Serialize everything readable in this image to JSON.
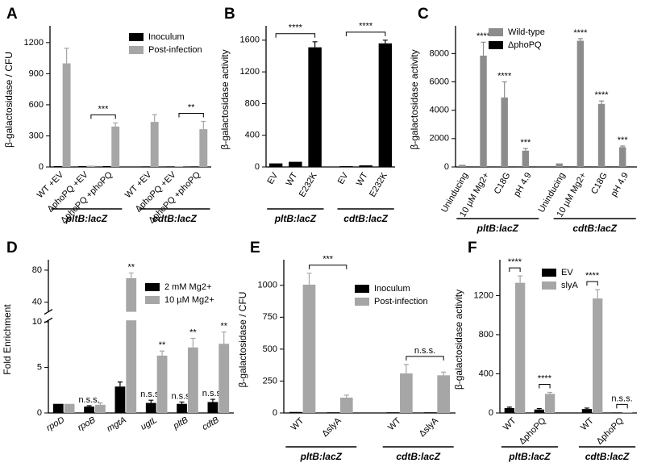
{
  "chart_data": [
    {
      "type": "bar",
      "panel": "A",
      "ylabel": "β-galactosidase / CFU",
      "categories": [
        "WT +EV",
        "ΔphoPQ +EV",
        "ΔphoPQ +phoPQ",
        "WT +EV",
        "ΔphoPQ +EV",
        "ΔphoPQ +phoPQ"
      ],
      "groups": [
        "pltB:lacZ",
        "cdtB:lacZ"
      ],
      "series": [
        {
          "name": "Inoculum",
          "color": "#000000",
          "values": [
            8,
            8,
            8,
            5,
            5,
            5
          ],
          "errors": [
            null,
            null,
            null,
            null,
            null,
            null
          ]
        },
        {
          "name": "Post-infection",
          "color": "#a6a6a6",
          "values": [
            1000,
            12,
            390,
            435,
            5,
            365
          ],
          "errors": [
            145,
            null,
            35,
            70,
            null,
            75
          ]
        }
      ],
      "brackets": [
        {
          "from": 1,
          "to": 2,
          "label": "***"
        },
        {
          "from": 4,
          "to": 5,
          "label": "**"
        }
      ],
      "ylim": [
        0,
        1300
      ],
      "yticks": [
        0,
        300,
        600,
        900,
        1200
      ]
    },
    {
      "type": "bar",
      "panel": "B",
      "ylabel": "β-galactosidase activity",
      "categories": [
        "EV",
        "WT",
        "E232K",
        "EV",
        "WT",
        "E232K"
      ],
      "groups": [
        "pltB:lacZ",
        "cdtB:lacZ"
      ],
      "series": [
        {
          "color": "#000000",
          "values": [
            45,
            65,
            1510,
            10,
            20,
            1560
          ],
          "errors": [
            null,
            null,
            70,
            null,
            null,
            40
          ]
        }
      ],
      "brackets": [
        {
          "from": 0,
          "to": 2,
          "label": "****"
        },
        {
          "from": 3,
          "to": 5,
          "label": "****"
        }
      ],
      "ylim": [
        0,
        1700
      ],
      "yticks": [
        0,
        400,
        800,
        1200,
        1600
      ]
    },
    {
      "type": "bar",
      "panel": "C",
      "ylabel": "β-galactosidase activity",
      "categories": [
        "Uninducing",
        "10 µM Mg2+",
        "C18G",
        "pH 4.9",
        "Uninducing",
        "10 µM Mg2+",
        "C18G",
        "pH 4.9"
      ],
      "groups": [
        "pltB:lacZ",
        "cdtB:lacZ"
      ],
      "series": [
        {
          "name": "Wild-type",
          "color": "#8c8c8c",
          "values": [
            150,
            7850,
            4900,
            1150,
            250,
            8900,
            4450,
            1400
          ],
          "errors": [
            null,
            950,
            1100,
            150,
            null,
            150,
            200,
            80
          ],
          "marks": [
            null,
            "****",
            "****",
            "***",
            null,
            "****",
            "****",
            "***"
          ]
        },
        {
          "name": "ΔphoPQ",
          "color": "#000000",
          "values": [
            30,
            30,
            30,
            30,
            30,
            30,
            30,
            30
          ],
          "errors": [
            null,
            null,
            null,
            null,
            null,
            null,
            null,
            null
          ]
        }
      ],
      "ylim": [
        0,
        9500
      ],
      "yticks": [
        0,
        2000,
        4000,
        6000,
        8000
      ]
    },
    {
      "type": "bar",
      "panel": "D",
      "ylabel": "Fold Enrichment",
      "categories": [
        "rpoD",
        "rpoB",
        "mgtA",
        "ugtL",
        "pltB",
        "cdtB"
      ],
      "series": [
        {
          "name": "2 mM Mg2+",
          "color": "#000000",
          "values": [
            1,
            0.7,
            2.9,
            1.1,
            1,
            1.2
          ],
          "errors": [
            null,
            0.1,
            0.5,
            0.3,
            0.2,
            0.3
          ],
          "marks": [
            null,
            "n.s.s.",
            null,
            "n.s.s.",
            "n.s.s.",
            "n.s.s."
          ]
        },
        {
          "name": "10 µM Mg2+",
          "color": "#a6a6a6",
          "values": [
            1,
            0.9,
            70,
            6.3,
            7.2,
            7.6
          ],
          "errors": [
            null,
            0.2,
            6.5,
            0.5,
            1,
            1.3
          ],
          "marks": [
            null,
            null,
            "**",
            "**",
            "**",
            "**"
          ]
        }
      ],
      "axis_break": [
        10,
        30
      ],
      "ylim": [
        0,
        85
      ],
      "yticks": [
        0,
        5,
        10,
        40,
        80
      ]
    },
    {
      "type": "bar",
      "panel": "E",
      "ylabel": "β-galactosidase / CFU",
      "categories": [
        "WT",
        "ΔslyA",
        "WT",
        "ΔslyA"
      ],
      "groups": [
        "pltB:lacZ",
        "cdtB:lacZ"
      ],
      "series": [
        {
          "name": "Inoculum",
          "color": "#000000",
          "values": [
            8,
            5,
            5,
            5
          ],
          "errors": [
            null,
            null,
            null,
            null
          ]
        },
        {
          "name": "Post-infection",
          "color": "#a6a6a6",
          "values": [
            1005,
            120,
            310,
            295
          ],
          "errors": [
            90,
            20,
            70,
            25
          ]
        }
      ],
      "brackets": [
        {
          "from": 0,
          "to": 1,
          "label": "***"
        },
        {
          "from": 2,
          "to": 3,
          "label": "n.s.s."
        }
      ],
      "ylim": [
        0,
        1150
      ],
      "yticks": [
        0,
        250,
        500,
        750,
        1000
      ]
    },
    {
      "type": "bar",
      "panel": "F",
      "ylabel": "β-galactosidase activity",
      "categories": [
        "WT",
        "ΔphoPQ",
        "WT",
        "ΔphoPQ"
      ],
      "groups": [
        "pltB:lacZ",
        "cdtB:lacZ"
      ],
      "series": [
        {
          "name": "EV",
          "color": "#000000",
          "values": [
            50,
            35,
            40,
            5
          ],
          "errors": [
            10,
            10,
            10,
            null
          ]
        },
        {
          "name": "slyA",
          "color": "#a6a6a6",
          "values": [
            1330,
            195,
            1170,
            5
          ],
          "errors": [
            70,
            15,
            90,
            null
          ]
        }
      ],
      "brackets": [
        {
          "from": 0,
          "to": 0,
          "label": "****"
        },
        {
          "from": 1,
          "to": 1,
          "label": "****"
        },
        {
          "from": 2,
          "to": 2,
          "label": "****"
        },
        {
          "from": 3,
          "to": 3,
          "label": "n.s.s."
        }
      ],
      "ylim": [
        0,
        1500
      ],
      "yticks": [
        0,
        400,
        800,
        1200
      ]
    }
  ]
}
